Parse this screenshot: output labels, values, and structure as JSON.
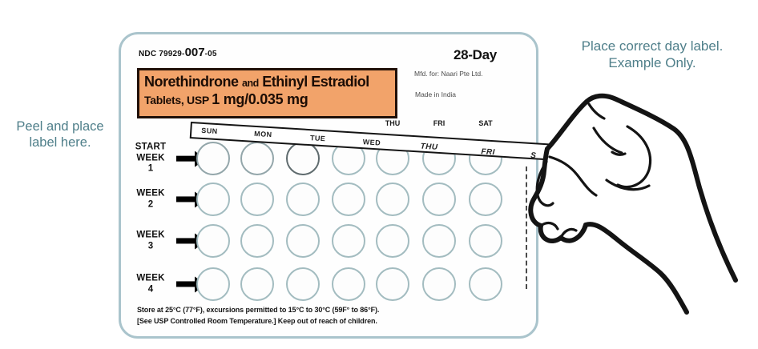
{
  "annotations": {
    "left_line1": "Peel and place",
    "left_line2": "label here.",
    "right_line1": "Place correct day label.",
    "right_line2": "Example Only."
  },
  "card": {
    "ndc_prefix": "NDC 79929-",
    "ndc_mid": "007",
    "ndc_suffix": "-05",
    "pack_type": "28-Day",
    "drug_name_1": "Norethindrone",
    "drug_name_and": "and",
    "drug_name_2": "Ethinyl Estradiol",
    "drug_form": "Tablets, USP",
    "drug_dose": "1 mg/0.035 mg",
    "mfd_for": "Mfd. for: Naari Pte Ltd.",
    "made_in": "Made in India",
    "visible_day_headers": [
      "THU",
      "FRI",
      "SAT"
    ],
    "week_rows": [
      {
        "prefix": "START",
        "label": "WEEK",
        "num": "1"
      },
      {
        "prefix": "",
        "label": "WEEK",
        "num": "2"
      },
      {
        "prefix": "",
        "label": "WEEK",
        "num": "3"
      },
      {
        "prefix": "",
        "label": "WEEK",
        "num": "4"
      }
    ],
    "pill_rows": 4,
    "pill_cols": 7,
    "storage_line1": "Store at 25°C (77°F), excursions permitted to 15°C to 30°C (59F° to 86°F).",
    "storage_line2": "[See USP Controlled Room Temperature.] Keep out of reach of children."
  },
  "strip": {
    "days": [
      "SUN",
      "MON",
      "TUE",
      "WED",
      "THU",
      "FRI",
      "S"
    ]
  },
  "colors": {
    "accent_orange": "#f2a36a",
    "teal_text": "#4f7f8a",
    "card_border": "#aac4cc",
    "pill_outline": "#a3bcc0",
    "ink": "#141414"
  }
}
